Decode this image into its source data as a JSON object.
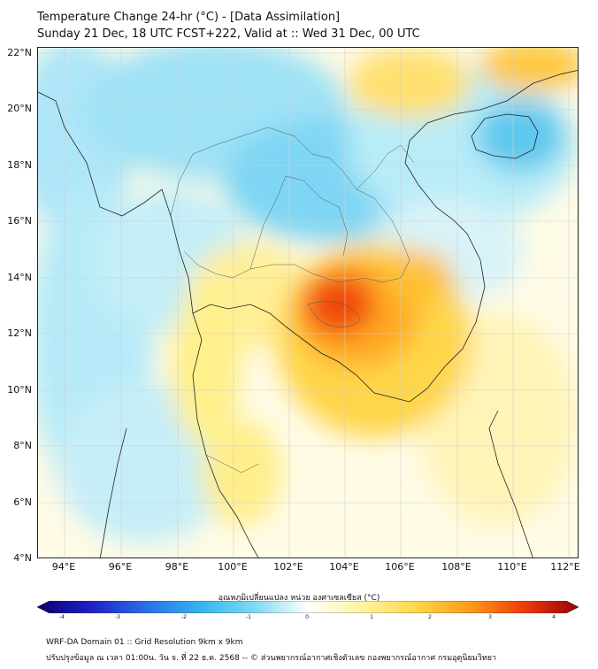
{
  "header": {
    "title_line1": "Temperature Change 24-hr (°C) - [Data Assimilation]",
    "title_line2": "Sunday 21 Dec, 18 UTC FCST+222, Valid at :: Wed 31 Dec, 00 UTC"
  },
  "map": {
    "lat_labels": [
      "22°N",
      "20°N",
      "18°N",
      "16°N",
      "14°N",
      "12°N",
      "10°N",
      "8°N",
      "6°N",
      "4°N"
    ],
    "lon_labels": [
      "94°E",
      "96°E",
      "98°E",
      "100°E",
      "102°E",
      "104°E",
      "106°E",
      "108°E",
      "110°E",
      "112°E"
    ]
  },
  "colorbar": {
    "title": "อุณหภูมิเปลี่ยนแปลง หน่วย องศาเซลเซียส (°C)",
    "ticks": [
      "-4",
      "-3",
      "-2",
      "-1",
      "0",
      "1",
      "2",
      "3",
      "4"
    ],
    "colors": [
      "#08006e",
      "#1e20c8",
      "#2a6ee6",
      "#32b4f0",
      "#7ed8f2",
      "#ffffff",
      "#fff4a0",
      "#ffd84a",
      "#ff9a18",
      "#f03a0a",
      "#96000a"
    ]
  },
  "footer": {
    "line1": "WRF-DA Domain 01 :: Grid Resolution 9km x 9km",
    "line2": "ปรับปรุงข้อมูล ณ เวลา 01:00น. วัน จ. ที่ 22 ธ.ค. 2568 -- © ส่วนพยากรณ์อากาศเชิงตัวเลข กองพยากรณ์อากาศ กรมอุตุนิยมวิทยา"
  }
}
